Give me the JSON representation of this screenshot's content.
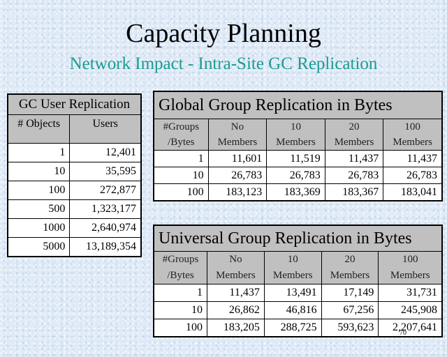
{
  "title": "Capacity Planning",
  "subtitle": "Network Impact - Intra-Site GC Replication",
  "gc_table": {
    "caption": "GC User Replication",
    "headers": [
      "# Objects",
      "Users"
    ],
    "rows": [
      [
        "1",
        "12,401"
      ],
      [
        "10",
        "35,595"
      ],
      [
        "100",
        "272,877"
      ],
      [
        "500",
        "1,323,177"
      ],
      [
        "1000",
        "2,640,974"
      ],
      [
        "5000",
        "13,189,354"
      ]
    ]
  },
  "global_table": {
    "caption": "Global Group Replication in Bytes",
    "header_top": [
      "#Groups",
      "No",
      "10",
      "20",
      "100"
    ],
    "header_bottom": [
      "/Bytes",
      "Members",
      "Members",
      "Members",
      "Members"
    ],
    "rows": [
      [
        "1",
        "11,601",
        "11,519",
        "11,437",
        "11,437"
      ],
      [
        "10",
        "26,783",
        "26,783",
        "26,783",
        "26,783"
      ],
      [
        "100",
        "183,123",
        "183,369",
        "183,367",
        "183,041"
      ]
    ]
  },
  "universal_table": {
    "caption": "Universal Group Replication in Bytes",
    "header_top": [
      "#Groups",
      "No",
      "10",
      "20",
      "100"
    ],
    "header_bottom": [
      "/Bytes",
      "Members",
      "Members",
      "Members",
      "Members"
    ],
    "rows": [
      [
        "1",
        "11,437",
        "13,491",
        "17,149",
        "31,731"
      ],
      [
        "10",
        "26,862",
        "46,816",
        "67,256",
        "245,908"
      ],
      [
        "100",
        "183,205",
        "288,725",
        "593,623",
        "2,207,641"
      ]
    ]
  },
  "page_number": "70"
}
